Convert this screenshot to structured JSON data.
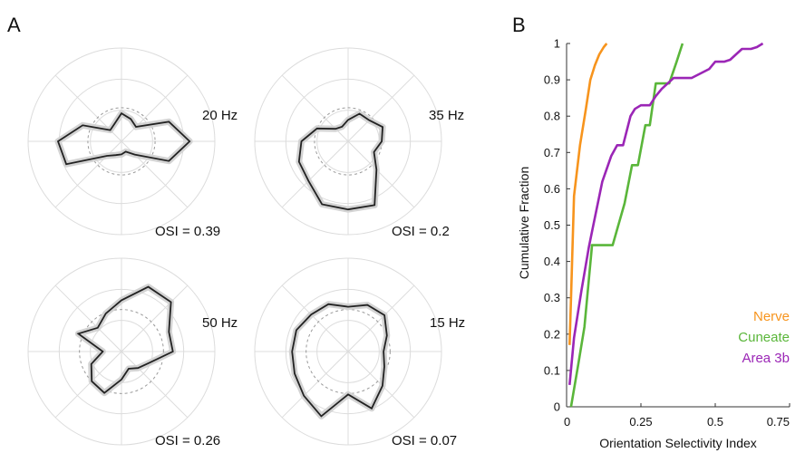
{
  "panel_labels": {
    "a": "A",
    "b": "B"
  },
  "chart_data": [
    {
      "type": "polar",
      "panel": "A",
      "radial_rings": 3,
      "gridlines": "every 45 degrees",
      "reference_circle": "dashed",
      "polar_plots": [
        {
          "frequency_label": "20 Hz",
          "osi_label": "OSI = 0.39",
          "reference_radius": 0.36,
          "points": [
            [
              0,
              0.73
            ],
            [
              22.5,
              0.55
            ],
            [
              45,
              0.22
            ],
            [
              67.5,
              0.26
            ],
            [
              90,
              0.3
            ],
            [
              112.5,
              0.2
            ],
            [
              135,
              0.17
            ],
            [
              157.5,
              0.45
            ],
            [
              180,
              0.68
            ],
            [
              202.5,
              0.64
            ],
            [
              225,
              0.22
            ],
            [
              247.5,
              0.16
            ],
            [
              270,
              0.14
            ],
            [
              292.5,
              0.12
            ],
            [
              315,
              0.2
            ],
            [
              337.5,
              0.55
            ]
          ]
        },
        {
          "frequency_label": "35 Hz",
          "osi_label": "OSI = 0.2",
          "reference_radius": 0.36,
          "points": [
            [
              0,
              0.36
            ],
            [
              22.5,
              0.4
            ],
            [
              45,
              0.32
            ],
            [
              67.5,
              0.32
            ],
            [
              90,
              0.23
            ],
            [
              112.5,
              0.17
            ],
            [
              135,
              0.19
            ],
            [
              157.5,
              0.36
            ],
            [
              180,
              0.5
            ],
            [
              202.5,
              0.57
            ],
            [
              225,
              0.6
            ],
            [
              247.5,
              0.73
            ],
            [
              270,
              0.73
            ],
            [
              292.5,
              0.74
            ],
            [
              315,
              0.43
            ],
            [
              337.5,
              0.3
            ]
          ]
        },
        {
          "frequency_label": "50 Hz",
          "osi_label": "OSI = 0.26",
          "reference_radius": 0.45,
          "points": [
            [
              0,
              0.55
            ],
            [
              22.5,
              0.55
            ],
            [
              45,
              0.75
            ],
            [
              67.5,
              0.75
            ],
            [
              90,
              0.55
            ],
            [
              112.5,
              0.44
            ],
            [
              135,
              0.36
            ],
            [
              157.5,
              0.5
            ],
            [
              180,
              0.2
            ],
            [
              202.5,
              0.35
            ],
            [
              225,
              0.45
            ],
            [
              247.5,
              0.48
            ],
            [
              270,
              0.3
            ],
            [
              292.5,
              0.2
            ],
            [
              315,
              0.25
            ],
            [
              337.5,
              0.32
            ]
          ]
        },
        {
          "frequency_label": "15 Hz",
          "osi_label": "OSI = 0.07",
          "reference_radius": 0.45,
          "points": [
            [
              0,
              0.38
            ],
            [
              22.5,
              0.45
            ],
            [
              45,
              0.55
            ],
            [
              67.5,
              0.54
            ],
            [
              90,
              0.48
            ],
            [
              112.5,
              0.55
            ],
            [
              135,
              0.56
            ],
            [
              157.5,
              0.6
            ],
            [
              180,
              0.6
            ],
            [
              202.5,
              0.62
            ],
            [
              225,
              0.67
            ],
            [
              247.5,
              0.75
            ],
            [
              270,
              0.46
            ],
            [
              292.5,
              0.66
            ],
            [
              315,
              0.52
            ],
            [
              337.5,
              0.42
            ]
          ]
        }
      ]
    },
    {
      "type": "line",
      "panel": "B",
      "xlabel": "Orientation Selectivity Index",
      "ylabel": "Cumulative Fraction",
      "xlim": [
        0,
        0.75
      ],
      "ylim": [
        0,
        1
      ],
      "x_ticks": [
        0,
        0.25,
        0.5,
        0.75
      ],
      "x_tick_labels": [
        "0",
        "0.25",
        "0.5",
        "0.75"
      ],
      "y_ticks": [
        0,
        0.1,
        0.2,
        0.3,
        0.4,
        0.5,
        0.6,
        0.7,
        0.8,
        0.9,
        1
      ],
      "y_tick_labels": [
        "0",
        "0.1",
        "0.2",
        "0.3",
        "0.4",
        "0.5",
        "0.6",
        "0.7",
        "0.8",
        "0.9",
        "1"
      ],
      "grid": false,
      "legend_position": "bottom-right",
      "series": [
        {
          "name": "Nerve",
          "color": "#f7941d",
          "x": [
            0.01,
            0.015,
            0.025,
            0.045,
            0.065,
            0.08,
            0.095,
            0.11,
            0.125,
            0.135
          ],
          "y": [
            0.17,
            0.3,
            0.58,
            0.72,
            0.82,
            0.9,
            0.94,
            0.97,
            0.99,
            1.0
          ]
        },
        {
          "name": "Cuneate",
          "color": "#5ab63a",
          "x": [
            0.015,
            0.04,
            0.06,
            0.085,
            0.085,
            0.155,
            0.195,
            0.22,
            0.24,
            0.265,
            0.28,
            0.3,
            0.345,
            0.37,
            0.39
          ],
          "y": [
            0.0,
            0.12,
            0.22,
            0.44,
            0.445,
            0.445,
            0.56,
            0.665,
            0.665,
            0.775,
            0.775,
            0.89,
            0.89,
            0.95,
            1.0
          ]
        },
        {
          "name": "Area 3b",
          "color": "#9b26b6",
          "x": [
            0.01,
            0.025,
            0.05,
            0.075,
            0.09,
            0.12,
            0.15,
            0.17,
            0.19,
            0.215,
            0.23,
            0.25,
            0.28,
            0.3,
            0.32,
            0.36,
            0.42,
            0.48,
            0.5,
            0.53,
            0.55,
            0.59,
            0.62,
            0.64,
            0.66
          ],
          "y": [
            0.06,
            0.19,
            0.32,
            0.44,
            0.5,
            0.62,
            0.69,
            0.72,
            0.72,
            0.8,
            0.82,
            0.83,
            0.83,
            0.855,
            0.875,
            0.905,
            0.905,
            0.93,
            0.95,
            0.95,
            0.955,
            0.985,
            0.985,
            0.99,
            1.0
          ]
        }
      ]
    }
  ]
}
